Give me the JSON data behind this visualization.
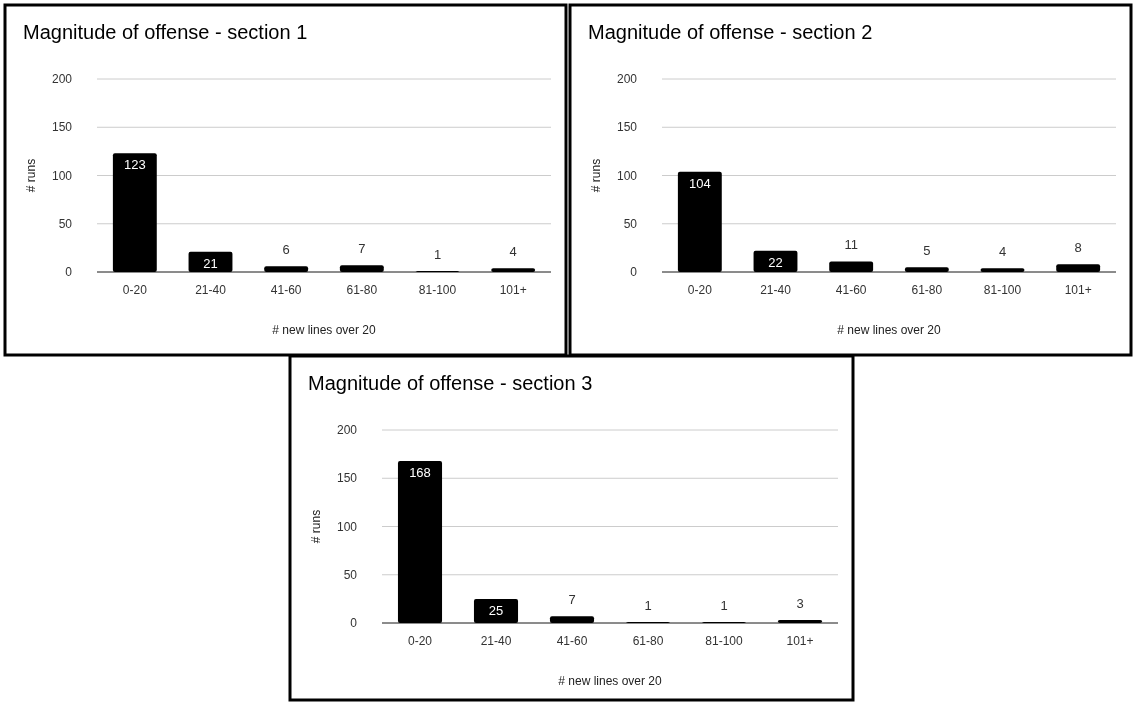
{
  "chart_data": [
    {
      "type": "bar",
      "title": "Magnitude of offense - section 1",
      "xlabel": "# new lines over 20",
      "ylabel": "# runs",
      "categories": [
        "0-20",
        "21-40",
        "41-60",
        "61-80",
        "81-100",
        "101+"
      ],
      "values": [
        123,
        21,
        6,
        7,
        1,
        4
      ],
      "color": "#000000",
      "ylim": [
        0,
        200
      ],
      "yticks": [
        0,
        50,
        100,
        150,
        200
      ],
      "grid": "y",
      "data_labels": true
    },
    {
      "type": "bar",
      "title": "Magnitude of offense - section 2",
      "xlabel": "# new lines over 20",
      "ylabel": "# runs",
      "categories": [
        "0-20",
        "21-40",
        "41-60",
        "61-80",
        "81-100",
        "101+"
      ],
      "values": [
        104,
        22,
        11,
        5,
        4,
        8
      ],
      "color": "#000000",
      "ylim": [
        0,
        200
      ],
      "yticks": [
        0,
        50,
        100,
        150,
        200
      ],
      "grid": "y",
      "data_labels": true
    },
    {
      "type": "bar",
      "title": "Magnitude of offense - section 3",
      "xlabel": "# new lines over 20",
      "ylabel": "# runs",
      "categories": [
        "0-20",
        "21-40",
        "41-60",
        "61-80",
        "81-100",
        "101+"
      ],
      "values": [
        168,
        25,
        7,
        1,
        1,
        3
      ],
      "color": "#000000",
      "ylim": [
        0,
        200
      ],
      "yticks": [
        0,
        50,
        100,
        150,
        200
      ],
      "grid": "y",
      "data_labels": true
    }
  ]
}
